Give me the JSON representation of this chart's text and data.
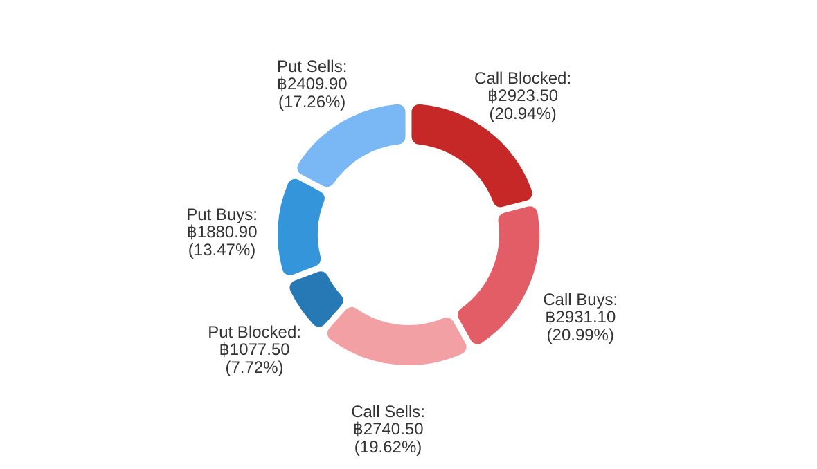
{
  "chart_data": {
    "type": "donut",
    "categories": [
      "Call Blocked",
      "Call Buys",
      "Call Sells",
      "Put Blocked",
      "Put Buys",
      "Put Sells"
    ],
    "values": [
      20.94,
      20.99,
      19.62,
      7.72,
      13.47,
      17.26
    ],
    "colors": [
      "#c62828",
      "#e35d66",
      "#f2a0a3",
      "#2779b5",
      "#3595db",
      "#79b8f4"
    ],
    "value_labels": [
      ": ฿2923.50 (20.94%)",
      ": ฿2931.10 (20.99%)",
      ": ฿2740.50 (19.62%)",
      ": ฿1077.50 (7.72%)",
      ": ฿1880.90 (13.47%)",
      ": ฿2409.90 (17.26%)"
    ]
  }
}
